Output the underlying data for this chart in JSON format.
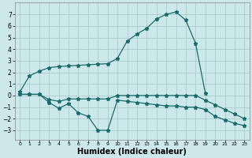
{
  "background_color": "#cce8ea",
  "grid_color": "#aacccc",
  "line_color": "#1a6b6b",
  "xlabel": "Humidex (Indice chaleur)",
  "xlabel_fontsize": 7,
  "ylim": [
    -3.8,
    8.0
  ],
  "xlim": [
    -0.5,
    23.5
  ],
  "yticks": [
    -3,
    -2,
    -1,
    0,
    1,
    2,
    3,
    4,
    5,
    6,
    7
  ],
  "xticks": [
    0,
    1,
    2,
    3,
    4,
    5,
    6,
    7,
    8,
    9,
    10,
    11,
    12,
    13,
    14,
    15,
    16,
    17,
    18,
    19,
    20,
    21,
    22,
    23
  ],
  "line1_x": [
    0,
    1,
    2,
    3,
    4,
    5,
    6,
    7,
    8,
    9,
    10,
    11,
    12,
    13,
    14,
    15,
    16,
    17,
    18,
    19
  ],
  "line1_y": [
    0.3,
    1.7,
    2.1,
    2.4,
    2.5,
    2.55,
    2.6,
    2.65,
    2.7,
    2.75,
    3.2,
    4.7,
    5.3,
    5.8,
    6.6,
    7.0,
    7.2,
    6.5,
    4.5,
    0.2
  ],
  "line2_x": [
    0,
    1,
    2,
    3,
    4,
    5,
    6,
    7,
    8,
    9,
    10,
    11,
    12,
    13,
    14,
    15,
    16,
    17,
    18,
    19,
    20,
    21,
    22,
    23
  ],
  "line2_y": [
    0.1,
    0.1,
    0.1,
    -0.6,
    -1.1,
    -0.7,
    -1.5,
    -1.8,
    -3.0,
    -3.0,
    -0.4,
    -0.5,
    -0.6,
    -0.7,
    -0.8,
    -0.9,
    -0.9,
    -1.0,
    -1.0,
    -1.2,
    -1.8,
    -2.1,
    -2.4,
    -2.6
  ],
  "line3_x": [
    0,
    1,
    2,
    3,
    4,
    5,
    6,
    7,
    8,
    9,
    10,
    11,
    12,
    13,
    14,
    15,
    16,
    17,
    18,
    19,
    20,
    21,
    22,
    23
  ],
  "line3_y": [
    0.1,
    0.1,
    0.1,
    -0.35,
    -0.5,
    -0.3,
    -0.3,
    -0.3,
    -0.3,
    -0.3,
    0.0,
    0.0,
    0.0,
    0.0,
    0.0,
    0.0,
    0.0,
    0.0,
    0.0,
    -0.4,
    -0.8,
    -1.2,
    -1.6,
    -2.0
  ]
}
